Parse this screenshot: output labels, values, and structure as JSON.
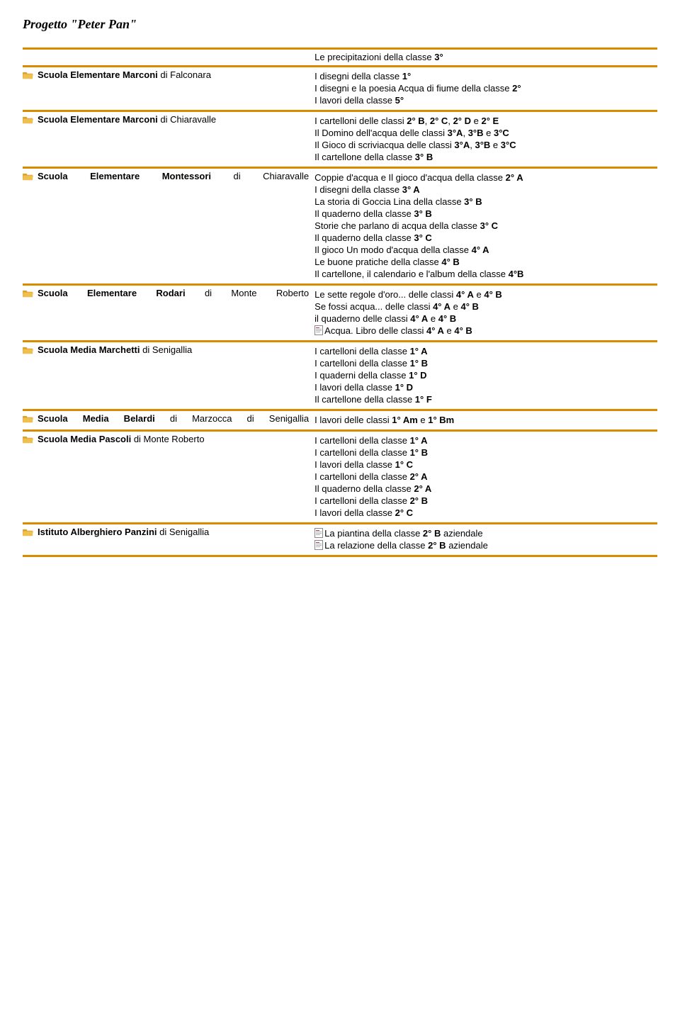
{
  "colors": {
    "divider": "#d98b00",
    "text": "#000000",
    "background": "#ffffff",
    "folder_back": "#d9a33a",
    "folder_front": "#f0c04e",
    "doc_fill": "#ffffff",
    "doc_border": "#777777",
    "doc_accent": "#c05050"
  },
  "title": "Progetto \"Peter Pan\"",
  "header_line": "Le precipitazioni della classe <b>3°</b>",
  "sections": [
    {
      "school_html": "<b>Scuola Elementare Marconi</b> di Falconara",
      "justify": false,
      "items": [
        {
          "html": "I disegni della classe <b>1°</b>"
        },
        {
          "html": "I disegni e la poesia Acqua di fiume della classe <b>2°</b>"
        },
        {
          "html": "I lavori della classe <b>5°</b>"
        }
      ]
    },
    {
      "school_html": "<b>Scuola Elementare Marconi</b> di Chiaravalle",
      "justify": false,
      "items": [
        {
          "html": "I cartelloni delle classi <b>2° B</b>, <b>2° C</b>, <b>2° D</b> e <b>2° E</b>"
        },
        {
          "html": "Il Domino dell'acqua delle classi <b>3°A</b>, <b>3°B</b> e <b>3°C</b>"
        },
        {
          "html": "Il Gioco di scriviacqua delle classi <b>3°A</b>, <b>3°B</b> e <b>3°C</b>"
        },
        {
          "html": "Il cartellone della classe <b>3° B</b>"
        }
      ]
    },
    {
      "school_html": "<b>Scuola Elementare Montessori</b> di Chiaravalle",
      "justify": true,
      "items": [
        {
          "html": "Coppie d'acqua e Il gioco d'acqua della classe <b>2° A</b>"
        },
        {
          "html": "I disegni della classe <b>3° A</b>"
        },
        {
          "html": "La storia di Goccia Lina della classe <b>3° B</b>"
        },
        {
          "html": "Il quaderno della classe <b>3° B</b>"
        },
        {
          "html": "Storie che parlano di acqua della classe <b>3° C</b>"
        },
        {
          "html": "Il quaderno della classe <b>3° C</b>"
        },
        {
          "html": "Il gioco Un modo d'acqua della classe <b>4° A</b>"
        },
        {
          "html": "Le buone pratiche della classe <b>4° B</b>"
        },
        {
          "html": "Il cartellone, il calendario e l'album della classe <b>4°B</b>"
        }
      ]
    },
    {
      "school_html": "<b>Scuola Elementare Rodari</b> di Monte Roberto",
      "justify": true,
      "items": [
        {
          "html": "Le sette regole d'oro... delle classi <b>4° A</b> e <b>4° B</b>"
        },
        {
          "html": "Se fossi acqua... delle classi <b>4° A</b> e <b>4° B</b>"
        },
        {
          "html": "il quaderno delle classi <b>4° A</b> e <b>4° B</b>"
        },
        {
          "html": "Acqua. Libro delle classi <b>4° A</b> e <b>4° B</b>",
          "icon": "doc"
        }
      ]
    },
    {
      "school_html": "<b>Scuola Media Marchetti</b> di Senigallia",
      "justify": false,
      "items": [
        {
          "html": "I cartelloni della classe <b>1° A</b>"
        },
        {
          "html": "I cartelloni della classe <b>1° B</b>"
        },
        {
          "html": "I quaderni della classe <b>1° D</b>"
        },
        {
          "html": "I lavori della classe <b>1° D</b>"
        },
        {
          "html": "Il cartellone della classe <b>1° F</b>"
        }
      ]
    },
    {
      "school_html": "<b>Scuola Media Belardi</b> di Marzocca di Senigallia",
      "justify": true,
      "items": [
        {
          "html": "I lavori delle classi <b>1° Am</b> e <b>1° Bm</b>"
        }
      ]
    },
    {
      "school_html": "<b>Scuola Media Pascoli</b> di Monte Roberto",
      "justify": false,
      "items": [
        {
          "html": "I cartelloni della classe <b>1° A</b>"
        },
        {
          "html": "I cartelloni della classe <b>1° B</b>"
        },
        {
          "html": "I lavori della classe <b>1° C</b>"
        },
        {
          "html": "I cartelloni della classe <b>2° A</b>"
        },
        {
          "html": "Il quaderno della classe <b>2° A</b>"
        },
        {
          "html": "I cartelloni della classe <b>2° B</b>"
        },
        {
          "html": "I lavori della classe <b>2° C</b>"
        }
      ]
    },
    {
      "school_html": "<b>Istituto Alberghiero Panzini</b> di Senigallia",
      "justify": false,
      "items": [
        {
          "html": "La piantina della classe <b>2° B</b> aziendale",
          "icon": "doc"
        },
        {
          "html": "La relazione della classe <b>2° B</b> aziendale",
          "icon": "doc"
        }
      ]
    }
  ]
}
